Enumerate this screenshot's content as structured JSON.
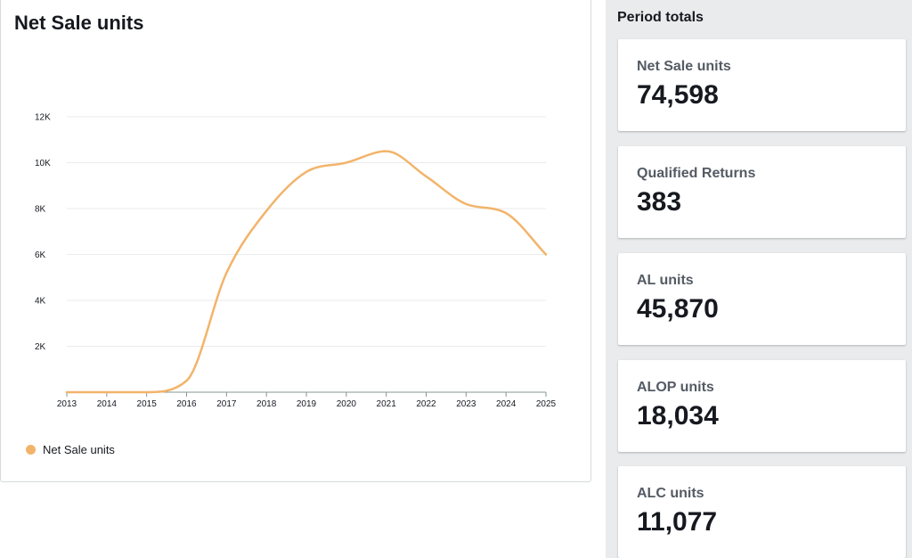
{
  "chart_panel": {
    "title": "Net Sale units"
  },
  "chart_data": {
    "type": "line",
    "title": "Net Sale units",
    "x": [
      2013,
      2014,
      2015,
      2016,
      2017,
      2018,
      2019,
      2020,
      2021,
      2022,
      2023,
      2024,
      2025
    ],
    "x_tick_labels": [
      "2013",
      "2014",
      "2015",
      "2016",
      "2017",
      "2018",
      "2019",
      "2020",
      "2021",
      "2022",
      "2023",
      "2024",
      "2025"
    ],
    "y_ticks": [
      2000,
      4000,
      6000,
      8000,
      10000,
      12000
    ],
    "y_tick_labels": [
      "2K",
      "4K",
      "6K",
      "8K",
      "10K",
      "12K"
    ],
    "ylim": [
      0,
      12000
    ],
    "grid": true,
    "legend": "bottom-left",
    "series": [
      {
        "name": "Net Sale units",
        "color": "#f2b46b",
        "values": [
          0,
          0,
          0,
          500,
          5200,
          7900,
          9600,
          10000,
          10500,
          9400,
          8200,
          7800,
          6000
        ]
      }
    ]
  },
  "legend": {
    "items": [
      {
        "label": "Net Sale units",
        "color": "#f2b46b"
      }
    ]
  },
  "period_totals": {
    "heading": "Period totals",
    "cards": [
      {
        "label": "Net Sale units",
        "value": "74,598"
      },
      {
        "label": "Qualified Returns",
        "value": "383"
      },
      {
        "label": "AL units",
        "value": "45,870"
      },
      {
        "label": "ALOP units",
        "value": "18,034"
      },
      {
        "label": "ALC units",
        "value": "11,077"
      }
    ]
  }
}
